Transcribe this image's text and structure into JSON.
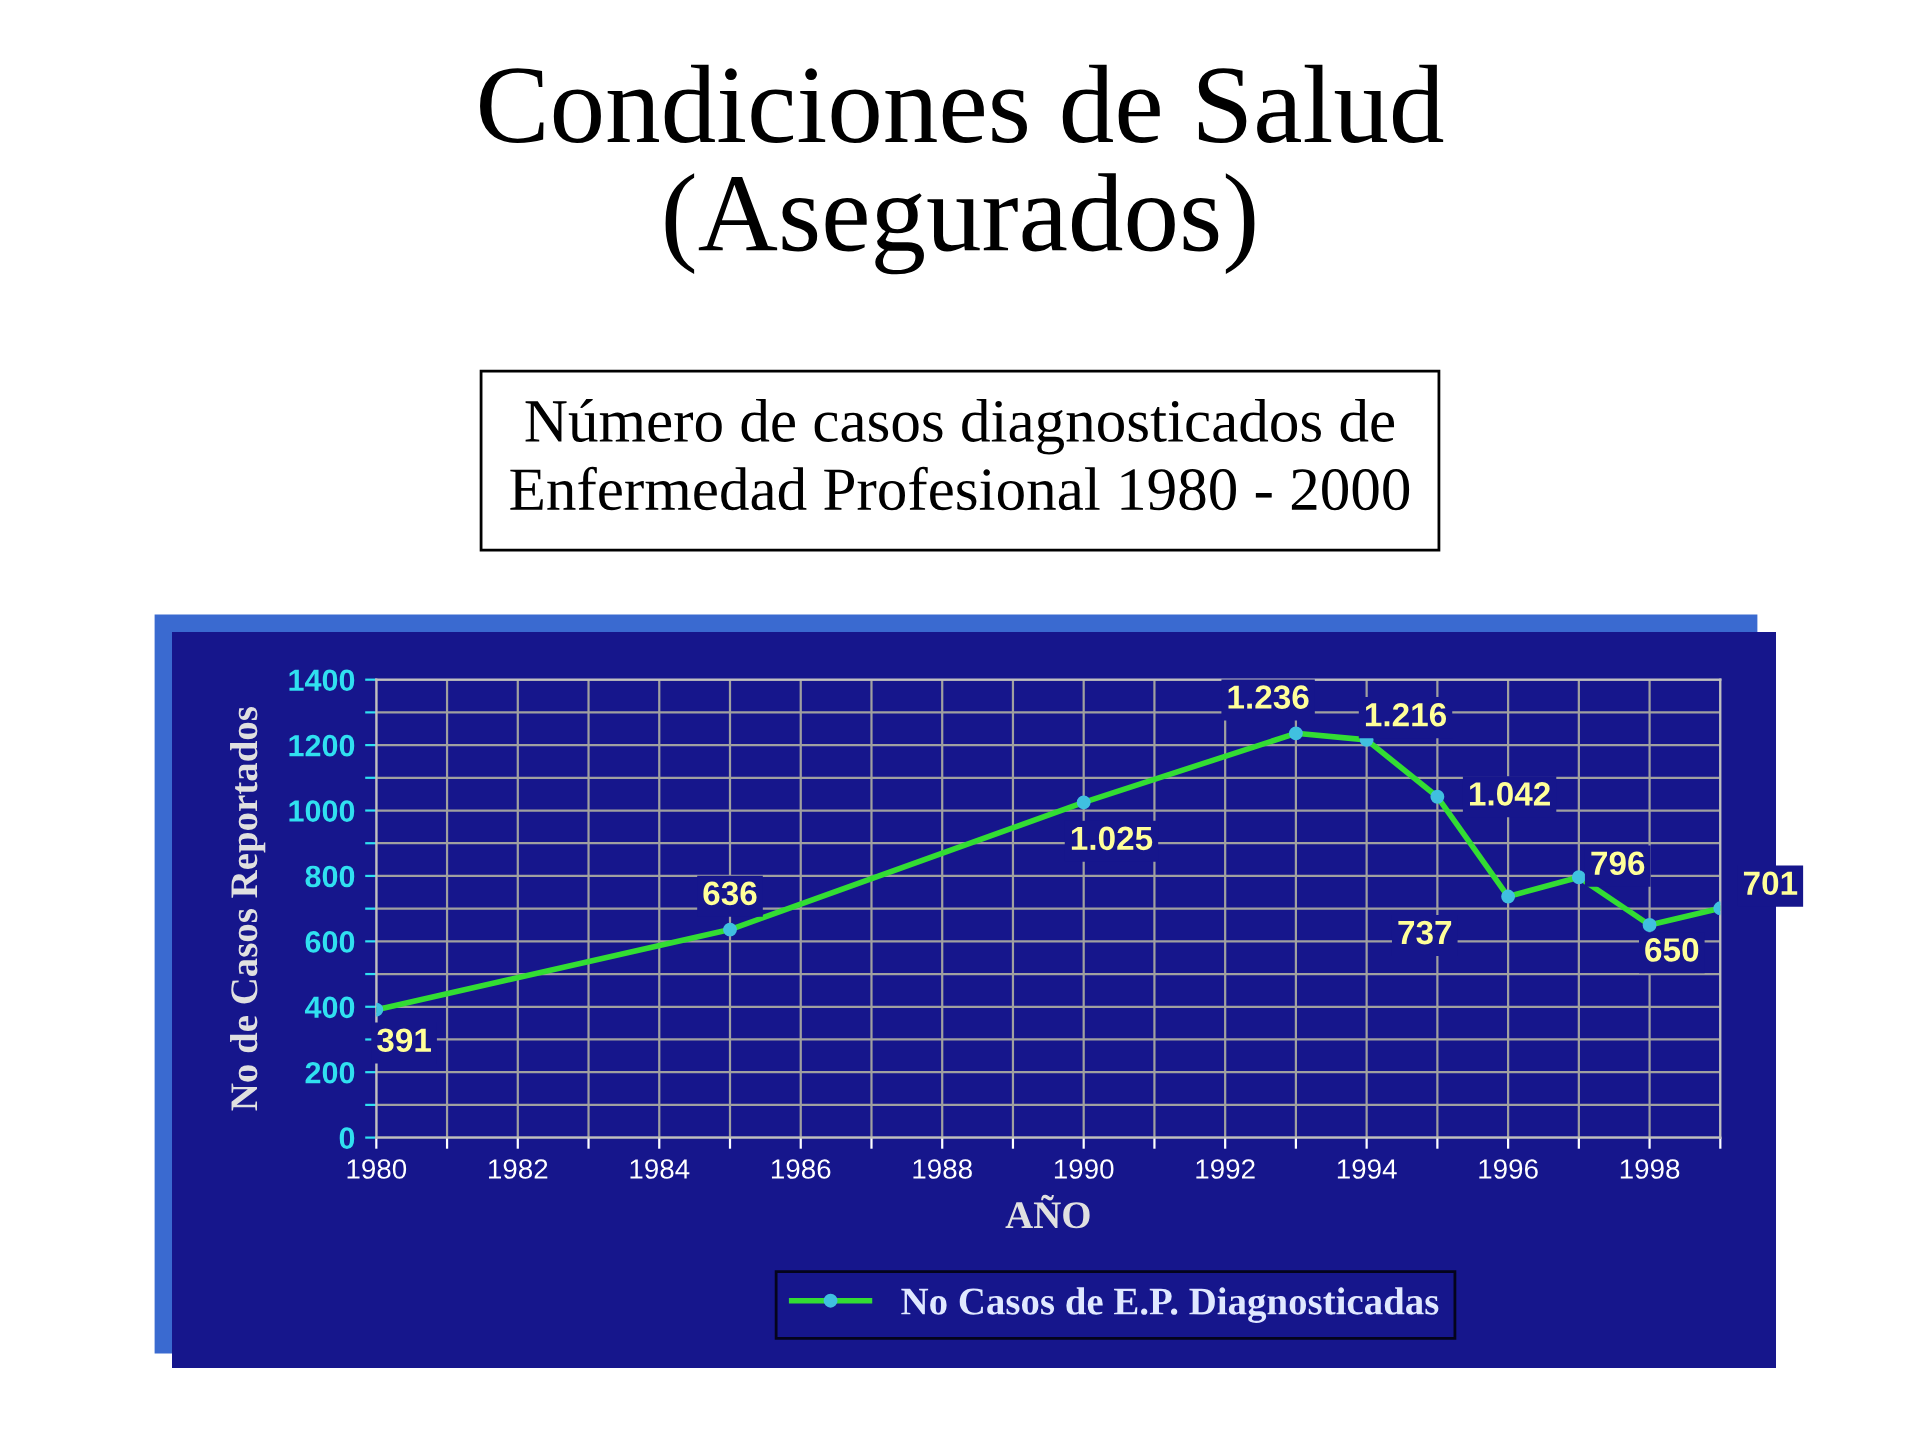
{
  "chart_data": {
    "type": "line",
    "title": "Condiciones de Salud\n(Asegurados)",
    "subtitle": "Número de casos diagnosticados de\nEnfermedad Profesional 1980 - 2000",
    "xlabel": "AÑO",
    "ylabel": "No de Casos Reportados",
    "x": [
      1980,
      1985,
      1990,
      1993,
      1994,
      1995,
      1996,
      1997,
      1998,
      1999
    ],
    "series": [
      {
        "name": "No Casos de E.P. Diagnosticadas",
        "color": "#33dd33",
        "values": [
          391,
          636,
          1025,
          1236,
          1216,
          1042,
          737,
          796,
          650,
          701
        ],
        "value_labels": [
          "391",
          "636",
          "1.025",
          "1.236",
          "1.216",
          "1.042",
          "737",
          "796",
          "650",
          "701"
        ]
      }
    ],
    "xlim": [
      1980,
      1999
    ],
    "xticks": [
      1980,
      {
        "value": 1981,
        "label": null
      },
      1982,
      {
        "value": 1983,
        "label": null
      },
      1984,
      {
        "value": 1985,
        "label": null
      },
      1986,
      {
        "value": 1987,
        "label": null
      },
      1988,
      {
        "value": 1989,
        "label": null
      },
      1990,
      {
        "value": 1991,
        "label": null
      },
      1992,
      {
        "value": 1993,
        "label": null
      },
      1994,
      {
        "value": 1995,
        "label": null
      },
      1996,
      {
        "value": 1997,
        "label": null
      },
      1998,
      {
        "value": 1999,
        "label": null
      }
    ],
    "ylim": [
      0,
      1400
    ],
    "yticks": [
      0,
      {
        "value": 100,
        "label": null
      },
      200,
      {
        "value": 300,
        "label": null
      },
      400,
      {
        "value": 500,
        "label": null
      },
      600,
      {
        "value": 700,
        "label": null
      },
      800,
      {
        "value": 900,
        "label": null
      },
      1000,
      {
        "value": 1100,
        "label": null
      },
      1200,
      {
        "value": 1300,
        "label": null
      },
      1400
    ],
    "grid": true,
    "legend": "bottom",
    "marker": "circle",
    "line_style": "solid"
  }
}
